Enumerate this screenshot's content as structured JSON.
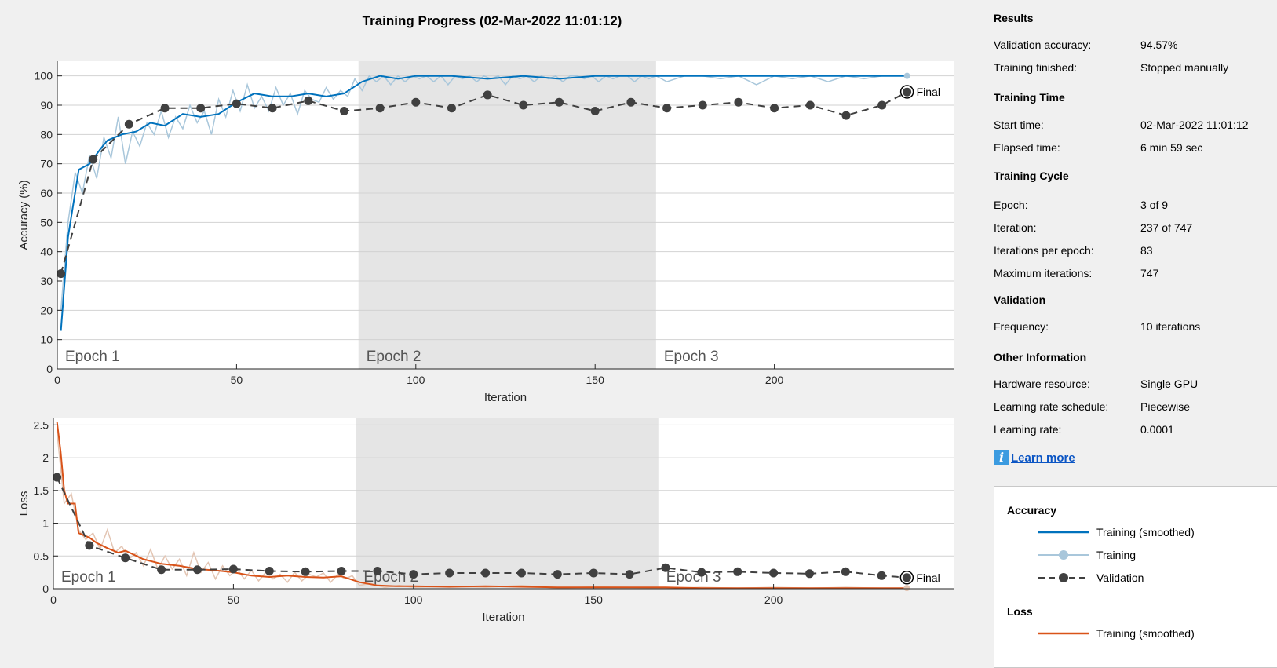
{
  "figure_title": "Training Progress (02-Mar-2022 11:01:12)",
  "colors": {
    "accuracy_smoothed": "#0072bd",
    "accuracy_raw": "#a9c7db",
    "loss_smoothed": "#d95319",
    "loss_raw": "#e3c5b3",
    "validation": "#404040",
    "epoch_shade": "#e5e5e5",
    "info_icon": "#3b9be0",
    "link": "#0b55c4"
  },
  "panel": {
    "sections": [
      {
        "title": "Results",
        "rows": [
          {
            "label": "Validation accuracy:",
            "value": "94.57%"
          },
          {
            "label": "Training finished:",
            "value": "Stopped manually"
          }
        ]
      },
      {
        "title": "Training Time",
        "rows": [
          {
            "label": "Start time:",
            "value": "02-Mar-2022 11:01:12"
          },
          {
            "label": "Elapsed time:",
            "value": "6 min 59 sec"
          }
        ]
      },
      {
        "title": "Training Cycle",
        "rows": [
          {
            "label": "Epoch:",
            "value": "3 of 9"
          },
          {
            "label": "Iteration:",
            "value": "237 of 747"
          },
          {
            "label": "Iterations per epoch:",
            "value": "83"
          },
          {
            "label": "Maximum iterations:",
            "value": "747"
          }
        ]
      },
      {
        "title": "Validation",
        "rows": [
          {
            "label": "Frequency:",
            "value": "10 iterations"
          }
        ]
      },
      {
        "title": "Other Information",
        "rows": [
          {
            "label": "Hardware resource:",
            "value": "Single GPU"
          },
          {
            "label": "Learning rate schedule:",
            "value": "Piecewise"
          },
          {
            "label": "Learning rate:",
            "value": "0.0001"
          }
        ]
      }
    ],
    "learn_more": {
      "icon": "info-icon",
      "icon_glyph": "i",
      "label": "Learn more"
    },
    "legend": {
      "groups": [
        {
          "title": "Accuracy",
          "items": [
            {
              "label": "Training (smoothed)",
              "style": "smooth",
              "color": "#0072bd"
            },
            {
              "label": "Training",
              "style": "raw",
              "color": "#a9c7db"
            },
            {
              "label": "Validation",
              "style": "validation",
              "color": "#404040"
            }
          ]
        },
        {
          "title": "Loss",
          "items": [
            {
              "label": "Training (smoothed)",
              "style": "smooth",
              "color": "#d95319"
            }
          ]
        }
      ]
    }
  },
  "chart_data": [
    {
      "type": "line",
      "xlabel": "Iteration",
      "ylabel": "Accuracy (%)",
      "xlim": [
        0,
        250
      ],
      "ylim": [
        0,
        105
      ],
      "xticks": [
        0,
        50,
        100,
        150,
        200
      ],
      "yticks": [
        0,
        10,
        20,
        30,
        40,
        50,
        60,
        70,
        80,
        90,
        100
      ],
      "grid": "horizontal",
      "epochs": [
        {
          "label": "Epoch 1",
          "start": 0,
          "end": 83,
          "shaded": false
        },
        {
          "label": "Epoch 2",
          "start": 84,
          "end": 167,
          "shaded": true
        },
        {
          "label": "Epoch 3",
          "start": 167,
          "end": 250,
          "shaded": false
        }
      ],
      "final_label": "Final",
      "final_point": {
        "x": 237,
        "y": 94.57
      },
      "series": [
        {
          "name": "Training (smoothed)",
          "role": "smooth",
          "x": [
            1,
            3,
            6,
            9,
            12,
            14,
            18,
            22,
            26,
            30,
            35,
            40,
            45,
            50,
            55,
            60,
            65,
            70,
            75,
            80,
            85,
            90,
            95,
            100,
            110,
            120,
            130,
            140,
            150,
            160,
            170,
            180,
            190,
            200,
            210,
            220,
            230,
            237
          ],
          "y": [
            13,
            45,
            68,
            70,
            75,
            78,
            80,
            81,
            84,
            83,
            87,
            86,
            87,
            91,
            94,
            93,
            93,
            94,
            93,
            94,
            98,
            100,
            99,
            100,
            100,
            99,
            100,
            99,
            100,
            100,
            100,
            100,
            100,
            100,
            100,
            100,
            100,
            100
          ]
        },
        {
          "name": "Training",
          "role": "raw",
          "x": [
            1,
            3,
            5,
            7,
            9,
            11,
            13,
            15,
            17,
            19,
            21,
            23,
            25,
            27,
            29,
            31,
            33,
            35,
            37,
            39,
            41,
            43,
            45,
            47,
            49,
            51,
            53,
            55,
            57,
            59,
            61,
            63,
            65,
            67,
            69,
            71,
            73,
            75,
            77,
            79,
            81,
            83,
            85,
            87,
            89,
            91,
            93,
            95,
            97,
            99,
            101,
            103,
            105,
            107,
            109,
            111,
            113,
            115,
            117,
            119,
            121,
            123,
            125,
            127,
            129,
            131,
            133,
            135,
            137,
            139,
            141,
            143,
            145,
            147,
            149,
            151,
            153,
            155,
            157,
            159,
            161,
            163,
            165,
            167,
            170,
            175,
            180,
            185,
            190,
            195,
            200,
            205,
            210,
            215,
            220,
            225,
            230,
            235,
            237
          ],
          "y": [
            20,
            50,
            67,
            60,
            73,
            65,
            79,
            72,
            86,
            70,
            81,
            76,
            84,
            80,
            88,
            79,
            86,
            82,
            90,
            84,
            88,
            80,
            92,
            86,
            95,
            88,
            97,
            89,
            93,
            88,
            96,
            90,
            94,
            87,
            95,
            92,
            91,
            96,
            92,
            95,
            93,
            99,
            95,
            100,
            98,
            100,
            97,
            100,
            98,
            100,
            99,
            100,
            98,
            100,
            97,
            100,
            99,
            100,
            98,
            100,
            99,
            100,
            97,
            100,
            99,
            100,
            98,
            100,
            99,
            100,
            98,
            100,
            100,
            99,
            100,
            98,
            100,
            99,
            100,
            100,
            98,
            100,
            99,
            100,
            98,
            100,
            100,
            99,
            100,
            97,
            100,
            99,
            100,
            98,
            100,
            99,
            100,
            100,
            100
          ]
        },
        {
          "name": "Validation",
          "role": "validation",
          "x": [
            1,
            10,
            20,
            30,
            40,
            50,
            60,
            70,
            80,
            90,
            100,
            110,
            120,
            130,
            140,
            150,
            160,
            170,
            180,
            190,
            200,
            210,
            220,
            230,
            237
          ],
          "y": [
            32.5,
            71.5,
            83.5,
            89,
            89,
            90.5,
            89,
            91.5,
            88,
            89,
            91,
            89,
            93.5,
            90,
            91,
            88,
            91,
            89,
            90,
            91,
            89,
            90,
            86.5,
            90,
            94.5
          ]
        }
      ]
    },
    {
      "type": "line",
      "xlabel": "Iteration",
      "ylabel": "Loss",
      "xlim": [
        0,
        250
      ],
      "ylim": [
        0,
        2.6
      ],
      "xticks": [
        0,
        50,
        100,
        150,
        200
      ],
      "yticks": [
        0,
        0.5,
        1,
        1.5,
        2,
        2.5
      ],
      "grid": "horizontal",
      "epochs": [
        {
          "label": "Epoch 1",
          "start": 0,
          "end": 84,
          "shaded": false
        },
        {
          "label": "Epoch 2",
          "start": 84,
          "end": 168,
          "shaded": true
        },
        {
          "label": "Epoch 3",
          "start": 168,
          "end": 250,
          "shaded": false
        }
      ],
      "final_label": "Final",
      "final_point": {
        "x": 237,
        "y": 0.17
      },
      "series": [
        {
          "name": "Training (smoothed)",
          "role": "smooth",
          "x": [
            1,
            2,
            3,
            4,
            6,
            7,
            10,
            12,
            15,
            18,
            20,
            25,
            30,
            35,
            40,
            45,
            50,
            55,
            60,
            65,
            70,
            75,
            80,
            85,
            90,
            95,
            100,
            110,
            120,
            130,
            140,
            150,
            160,
            170,
            180,
            190,
            200,
            210,
            220,
            230,
            237
          ],
          "y": [
            2.55,
            2.1,
            1.5,
            1.3,
            1.3,
            0.85,
            0.78,
            0.7,
            0.62,
            0.55,
            0.58,
            0.45,
            0.38,
            0.35,
            0.3,
            0.28,
            0.25,
            0.2,
            0.18,
            0.2,
            0.18,
            0.17,
            0.19,
            0.1,
            0.05,
            0.04,
            0.04,
            0.03,
            0.04,
            0.03,
            0.02,
            0.02,
            0.02,
            0.02,
            0.01,
            0.01,
            0.01,
            0.01,
            0.01,
            0.01,
            0.01
          ]
        },
        {
          "name": "Training",
          "role": "raw",
          "x": [
            1,
            3,
            5,
            7,
            9,
            11,
            13,
            15,
            17,
            19,
            21,
            23,
            25,
            27,
            29,
            31,
            33,
            35,
            37,
            39,
            41,
            43,
            45,
            47,
            49,
            51,
            53,
            55,
            57,
            59,
            61,
            63,
            65,
            67,
            69,
            71,
            73,
            75,
            77,
            79,
            81,
            83,
            85,
            88,
            92,
            96,
            100,
            110,
            120,
            130,
            140,
            150,
            160,
            170,
            180,
            190,
            200,
            210,
            220,
            230,
            237
          ],
          "y": [
            2.4,
            1.3,
            1.45,
            0.9,
            0.75,
            0.85,
            0.6,
            0.9,
            0.55,
            0.65,
            0.45,
            0.55,
            0.35,
            0.6,
            0.3,
            0.5,
            0.3,
            0.45,
            0.2,
            0.55,
            0.25,
            0.4,
            0.15,
            0.35,
            0.2,
            0.3,
            0.15,
            0.28,
            0.12,
            0.25,
            0.15,
            0.22,
            0.1,
            0.25,
            0.12,
            0.22,
            0.18,
            0.24,
            0.1,
            0.22,
            0.15,
            0.2,
            0.05,
            0.08,
            0.02,
            0.05,
            0.02,
            0.04,
            0.02,
            0.05,
            0.01,
            0.03,
            0.02,
            0.01,
            0.02,
            0.01,
            0.02,
            0.01,
            0.02,
            0.01,
            0.01
          ]
        },
        {
          "name": "Validation",
          "role": "validation",
          "x": [
            1,
            10,
            20,
            30,
            40,
            50,
            60,
            70,
            80,
            90,
            100,
            110,
            120,
            130,
            140,
            150,
            160,
            170,
            180,
            190,
            200,
            210,
            220,
            230,
            237
          ],
          "y": [
            1.7,
            0.66,
            0.47,
            0.29,
            0.29,
            0.3,
            0.27,
            0.26,
            0.27,
            0.27,
            0.22,
            0.24,
            0.24,
            0.24,
            0.22,
            0.24,
            0.22,
            0.32,
            0.25,
            0.26,
            0.24,
            0.23,
            0.26,
            0.2,
            0.17
          ]
        }
      ]
    }
  ]
}
